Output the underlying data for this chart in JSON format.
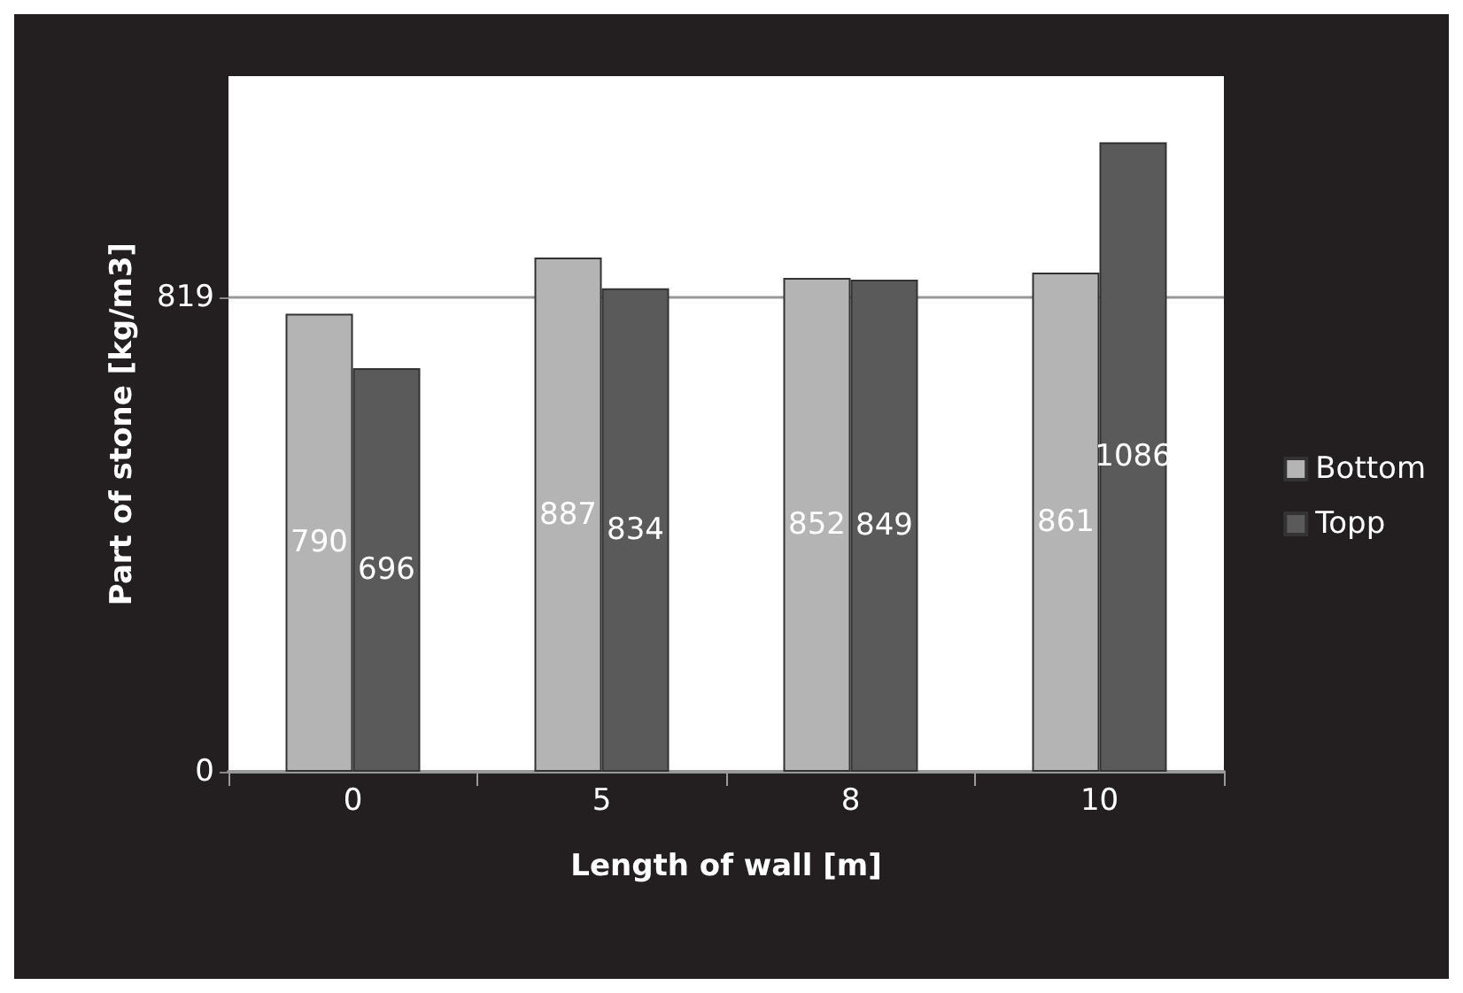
{
  "chart_data": {
    "type": "bar",
    "xlabel": "Length of wall [m]",
    "ylabel": "Part of stone [kg/m3]",
    "categories": [
      "0",
      "5",
      "8",
      "10"
    ],
    "series": [
      {
        "name": "Bottom",
        "color": "#b4b4b4",
        "values": [
          790,
          887,
          852,
          861
        ]
      },
      {
        "name": "Topp",
        "color": "#5a5a5a",
        "values": [
          696,
          834,
          849,
          1086
        ]
      }
    ],
    "ylim": [
      0,
      1200
    ],
    "yticks": [
      0,
      819
    ],
    "grid": "y",
    "legend": "right",
    "data_labels": true
  }
}
